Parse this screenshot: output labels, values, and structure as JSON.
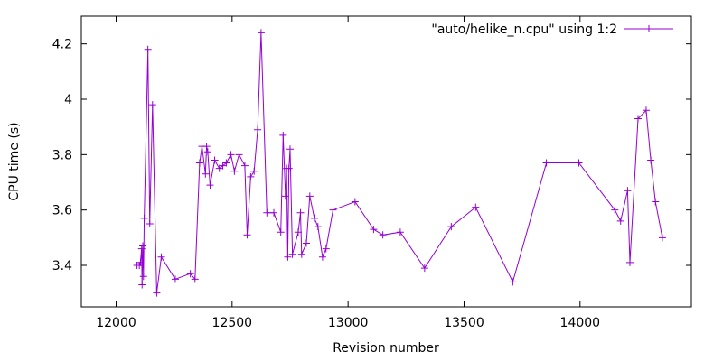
{
  "chart_data": {
    "type": "line",
    "xlabel": "Revision number",
    "ylabel": "CPU time (s)",
    "xlim": [
      11850,
      14480
    ],
    "ylim": [
      3.25,
      4.3
    ],
    "xticks": [
      12000,
      12500,
      13000,
      13500,
      14000
    ],
    "yticks": [
      3.4,
      3.6,
      3.8,
      4,
      4.2
    ],
    "xtick_labels": [
      "12000",
      "12500",
      "13000",
      "13500",
      "14000"
    ],
    "ytick_labels": [
      "3.4",
      "3.6",
      "3.8",
      "4",
      "4.2"
    ],
    "grid": false,
    "legend_position": "top-right",
    "series": [
      {
        "name": "\"auto/helike_n.cpu\" using 1:2",
        "color": "#9400d3",
        "marker": "plus",
        "points": [
          [
            12090,
            3.4
          ],
          [
            12100,
            3.4
          ],
          [
            12105,
            3.41
          ],
          [
            12110,
            3.46
          ],
          [
            12112,
            3.33
          ],
          [
            12115,
            3.47
          ],
          [
            12118,
            3.36
          ],
          [
            12121,
            3.57
          ],
          [
            12137,
            4.18
          ],
          [
            12145,
            3.55
          ],
          [
            12157,
            3.98
          ],
          [
            12175,
            3.3
          ],
          [
            12195,
            3.43
          ],
          [
            12255,
            3.35
          ],
          [
            12320,
            3.37
          ],
          [
            12340,
            3.35
          ],
          [
            12360,
            3.77
          ],
          [
            12370,
            3.83
          ],
          [
            12385,
            3.73
          ],
          [
            12390,
            3.83
          ],
          [
            12395,
            3.81
          ],
          [
            12405,
            3.69
          ],
          [
            12425,
            3.78
          ],
          [
            12445,
            3.75
          ],
          [
            12460,
            3.76
          ],
          [
            12475,
            3.77
          ],
          [
            12495,
            3.8
          ],
          [
            12510,
            3.74
          ],
          [
            12530,
            3.8
          ],
          [
            12555,
            3.76
          ],
          [
            12565,
            3.51
          ],
          [
            12580,
            3.72
          ],
          [
            12595,
            3.74
          ],
          [
            12610,
            3.89
          ],
          [
            12625,
            4.24
          ],
          [
            12650,
            3.59
          ],
          [
            12680,
            3.59
          ],
          [
            12710,
            3.52
          ],
          [
            12720,
            3.87
          ],
          [
            12730,
            3.65
          ],
          [
            12735,
            3.75
          ],
          [
            12740,
            3.43
          ],
          [
            12745,
            3.75
          ],
          [
            12750,
            3.82
          ],
          [
            12760,
            3.44
          ],
          [
            12785,
            3.52
          ],
          [
            12795,
            3.59
          ],
          [
            12800,
            3.44
          ],
          [
            12820,
            3.48
          ],
          [
            12835,
            3.65
          ],
          [
            12855,
            3.57
          ],
          [
            12870,
            3.54
          ],
          [
            12890,
            3.43
          ],
          [
            12905,
            3.46
          ],
          [
            12935,
            3.6
          ],
          [
            13030,
            3.63
          ],
          [
            13110,
            3.53
          ],
          [
            13150,
            3.51
          ],
          [
            13225,
            3.52
          ],
          [
            13330,
            3.39
          ],
          [
            13445,
            3.54
          ],
          [
            13550,
            3.61
          ],
          [
            13710,
            3.34
          ],
          [
            13855,
            3.77
          ],
          [
            13995,
            3.77
          ],
          [
            14150,
            3.6
          ],
          [
            14175,
            3.56
          ],
          [
            14205,
            3.67
          ],
          [
            14215,
            3.41
          ],
          [
            14250,
            3.93
          ],
          [
            14285,
            3.96
          ],
          [
            14305,
            3.78
          ],
          [
            14325,
            3.63
          ],
          [
            14355,
            3.5
          ]
        ]
      }
    ]
  }
}
